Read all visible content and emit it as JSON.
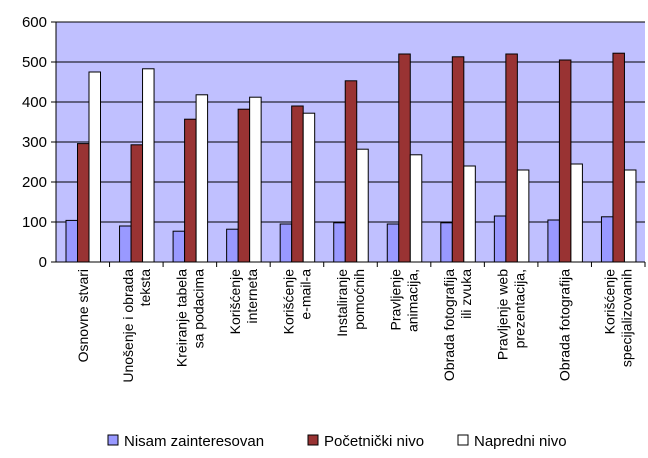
{
  "chart_data": {
    "type": "bar",
    "categories": [
      [
        "Osnovne stvari"
      ],
      [
        "Unošenje i obrada",
        "teksta"
      ],
      [
        "Kreiranje tabela",
        "sa podacima"
      ],
      [
        "Korišćenje",
        "interneta"
      ],
      [
        "Korišćenje",
        "e-mail-a"
      ],
      [
        "Instaliranje",
        "pomoćnih"
      ],
      [
        "Pravljenje",
        "animacija,"
      ],
      [
        "Obrada fotografija",
        "ili zvuka"
      ],
      [
        "Pravljenje web",
        "prezentacija,"
      ],
      [
        "Obrada fotografija"
      ],
      [
        "Korišćenje",
        "specijalizovanih"
      ]
    ],
    "series": [
      {
        "name": "Nisam zainteresovan",
        "color": "#9999ff",
        "values": [
          104,
          90,
          77,
          82,
          95,
          98,
          95,
          98,
          115,
          105,
          113
        ]
      },
      {
        "name": "Početnički nivo",
        "color": "#993333",
        "values": [
          296,
          293,
          357,
          382,
          390,
          453,
          520,
          513,
          520,
          505,
          522
        ]
      },
      {
        "name": "Napredni nivo",
        "color": "#ffffff",
        "values": [
          475,
          483,
          418,
          412,
          372,
          282,
          268,
          240,
          230,
          245,
          230
        ]
      }
    ],
    "ylim": [
      0,
      600
    ],
    "yticks": [
      0,
      100,
      200,
      300,
      400,
      500,
      600
    ],
    "plot_background": "#c0c0ff",
    "grid": true,
    "legend_position": "bottom"
  }
}
